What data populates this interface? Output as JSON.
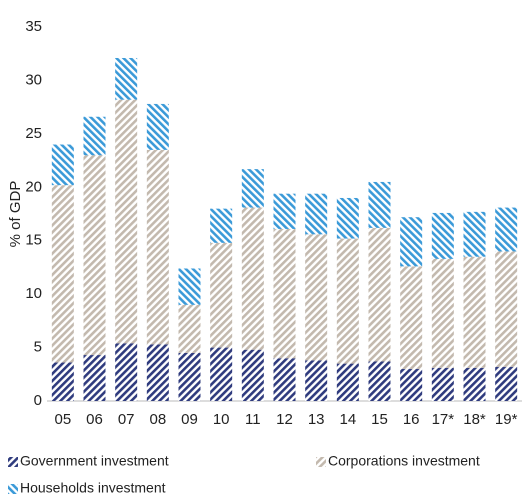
{
  "chart_data": {
    "type": "stacked-bar",
    "y_label": "% of GDP",
    "categories": [
      "05",
      "06",
      "07",
      "08",
      "09",
      "10",
      "11",
      "12",
      "13",
      "14",
      "15",
      "16",
      "17*",
      "18*",
      "19*"
    ],
    "series": [
      {
        "name": "Government investment",
        "color": "#2f3b7e",
        "values": [
          3.6,
          4.3,
          5.4,
          5.3,
          4.5,
          5.0,
          4.8,
          4.0,
          3.8,
          3.5,
          3.7,
          3.0,
          3.1,
          3.1,
          3.2
        ]
      },
      {
        "name": "Corporations investment",
        "color": "#c3b9ae",
        "values": [
          16.6,
          18.7,
          22.8,
          18.2,
          4.5,
          9.8,
          13.3,
          12.1,
          11.8,
          11.7,
          12.5,
          9.6,
          10.2,
          10.4,
          10.8
        ]
      },
      {
        "name": "Households investment",
        "color": "#3b9ad8",
        "values": [
          3.8,
          3.6,
          3.9,
          4.3,
          3.4,
          3.2,
          3.6,
          3.3,
          3.8,
          3.8,
          4.3,
          4.6,
          4.3,
          4.2,
          4.1
        ]
      }
    ],
    "ylim": [
      0,
      35
    ],
    "yticks": [
      0,
      5,
      10,
      15,
      20,
      25,
      30,
      35
    ],
    "grid": false
  }
}
